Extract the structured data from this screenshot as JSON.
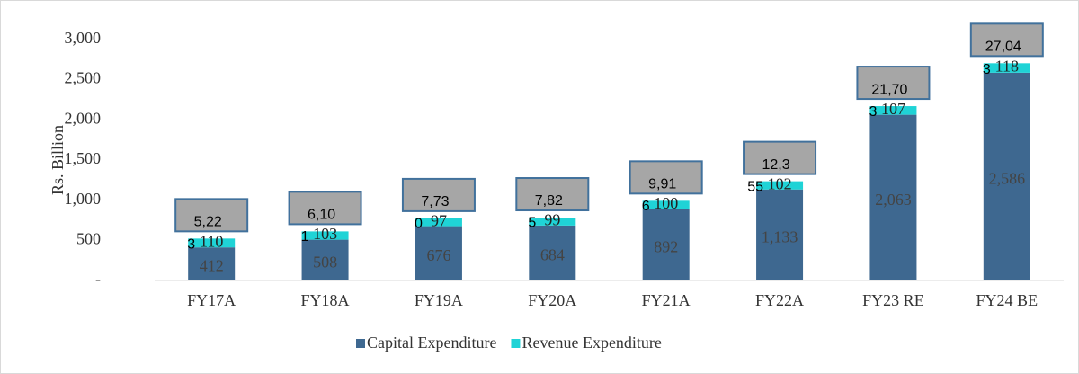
{
  "chart_data": {
    "type": "stacked_bar",
    "y_label": "Rs. Billion",
    "categories": [
      "FY17A",
      "FY18A",
      "FY19A",
      "FY20A",
      "FY21A",
      "FY22A",
      "FY23 RE",
      "FY24 BE"
    ],
    "series": [
      {
        "name": "Capital Expenditure",
        "color": "#3e6890",
        "values": [
          412,
          508,
          676,
          684,
          892,
          1133,
          2063,
          2586
        ],
        "value_labels": [
          "412",
          "508",
          "676",
          "684",
          "892",
          "1,133",
          "2,063",
          "2,586"
        ]
      },
      {
        "name": "Revenue Expenditure",
        "color": "#1fd3d6",
        "values": [
          110,
          103,
          97,
          99,
          100,
          102,
          107,
          118
        ]
      }
    ],
    "total_labels": [
      [
        "5,22",
        "3"
      ],
      [
        "6,10",
        "1"
      ],
      [
        "7,73",
        "0"
      ],
      [
        "7,82",
        "5"
      ],
      [
        "9,91",
        "6"
      ],
      [
        "12,3",
        "55"
      ],
      [
        "21,70",
        "3"
      ],
      [
        "27,04",
        "3"
      ]
    ],
    "ylim": [
      0,
      3200
    ],
    "yticks": [
      {
        "value": 0,
        "label": "-"
      },
      500,
      {
        "value": 1000,
        "label": "1,000"
      },
      {
        "value": 1500,
        "label": "1,500"
      },
      {
        "value": 2000,
        "label": "2,000"
      },
      {
        "value": 2500,
        "label": "2,500"
      },
      {
        "value": 3000,
        "label": "3,000"
      }
    ],
    "grid": false,
    "legend": "bottom"
  }
}
